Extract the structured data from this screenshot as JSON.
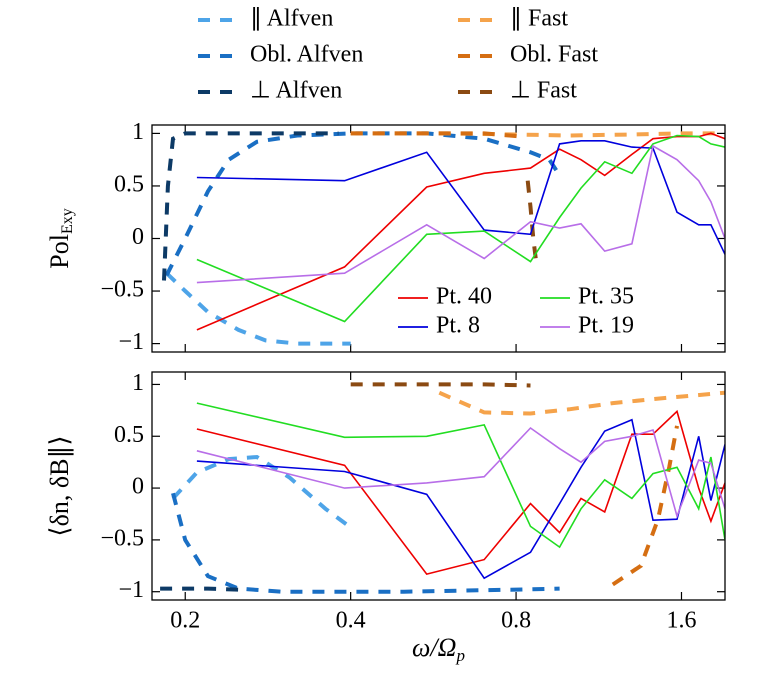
{
  "chart_data": [
    {
      "type": "line",
      "xscale": "log",
      "ylabel": "Pol",
      "ylabel_subscript": "Exy",
      "xlim": [
        0.174,
        1.92
      ],
      "ylim": [
        -1.08,
        1.08
      ],
      "xticks": [
        0.2,
        0.4,
        0.8,
        1.6
      ],
      "yticks": [
        {
          "value": -1,
          "label": "−1"
        },
        {
          "value": -0.5,
          "label": "−0.5"
        },
        0,
        0.5,
        1
      ],
      "legend": "lower right",
      "x": [
        0.21,
        0.39,
        0.55,
        0.7,
        0.85,
        0.96,
        1.05,
        1.16,
        1.3,
        1.42,
        1.57,
        1.72,
        1.81,
        1.92
      ],
      "series": [
        {
          "name": "∥ Alfven",
          "color": "#4ea4e8",
          "style": "dashed",
          "x": [
            0.185,
            0.2,
            0.22,
            0.25,
            0.28,
            0.32,
            0.4
          ],
          "values": [
            -0.33,
            -0.5,
            -0.7,
            -0.87,
            -0.97,
            -1,
            -1
          ]
        },
        {
          "name": "Obl. Alfven",
          "color": "#1a6fc4",
          "style": "dashed",
          "x": [
            0.185,
            0.2,
            0.22,
            0.24,
            0.27,
            0.32,
            0.4,
            0.55,
            0.7,
            0.85,
            0.92,
            0.96
          ],
          "values": [
            -0.35,
            0.0,
            0.45,
            0.75,
            0.92,
            0.98,
            1,
            1,
            0.95,
            0.82,
            0.75,
            0.6
          ]
        },
        {
          "name": "⊥ Alfven",
          "color": "#0d3a66",
          "style": "dashed",
          "x": [
            0.183,
            0.186,
            0.19,
            0.2,
            0.25,
            0.3,
            0.38
          ],
          "values": [
            -0.4,
            0.5,
            0.95,
            1,
            1,
            1,
            1
          ]
        },
        {
          "name": "∥ Fast",
          "color": "#f5a34b",
          "style": "dashed",
          "x": [
            0.4,
            0.6,
            0.8,
            1.0,
            1.3,
            1.6,
            1.92
          ],
          "values": [
            1,
            1,
            0.99,
            0.98,
            0.99,
            1,
            1
          ]
        },
        {
          "name": "Obl. Fast",
          "color": "#d56e12",
          "style": "dashed",
          "x": [
            0.4,
            0.55,
            0.7,
            0.82
          ],
          "values": [
            1,
            1,
            1,
            0.97
          ]
        },
        {
          "name": "⊥ Fast",
          "color": "#8b4a12",
          "style": "dashed",
          "x": [
            0.84,
            0.85,
            0.86,
            0.87
          ],
          "values": [
            0.55,
            0.3,
            0.0,
            -0.22
          ]
        },
        {
          "name": "Pt. 40",
          "color": "#ee0000",
          "style": "solid",
          "values": [
            -0.87,
            -0.27,
            0.49,
            0.62,
            0.67,
            0.85,
            0.75,
            0.6,
            0.8,
            0.95,
            0.97,
            0.97,
            1.0,
            0.95
          ]
        },
        {
          "name": "Pt. 8",
          "color": "#0000dd",
          "style": "solid",
          "values": [
            0.58,
            0.55,
            0.82,
            0.08,
            0.04,
            0.9,
            0.93,
            0.93,
            0.87,
            0.86,
            0.25,
            0.13,
            0.13,
            -0.15
          ]
        },
        {
          "name": "Pt. 35",
          "color": "#22dd22",
          "style": "solid",
          "values": [
            -0.2,
            -0.79,
            0.04,
            0.07,
            -0.22,
            0.2,
            0.48,
            0.73,
            0.62,
            0.9,
            0.98,
            0.97,
            0.9,
            0.87
          ]
        },
        {
          "name": "Pt. 19",
          "color": "#b86ee8",
          "style": "solid",
          "values": [
            -0.42,
            -0.33,
            0.13,
            -0.19,
            0.16,
            0.1,
            0.14,
            -0.12,
            -0.05,
            0.88,
            0.75,
            0.55,
            0.35,
            0.0
          ]
        }
      ]
    },
    {
      "type": "line",
      "xscale": "log",
      "ylabel": "⟨δn, δB∥⟩",
      "xlabel": "ω/Ω",
      "xlabel_subscript": "p",
      "xlim": [
        0.174,
        1.92
      ],
      "ylim": [
        -1.08,
        1.12
      ],
      "xticks": [
        0.2,
        0.4,
        0.8,
        1.6
      ],
      "yticks": [
        {
          "value": -1,
          "label": "−1"
        },
        {
          "value": -0.5,
          "label": "−0.5"
        },
        0,
        0.5,
        1
      ],
      "x": [
        0.21,
        0.39,
        0.55,
        0.7,
        0.85,
        0.96,
        1.05,
        1.16,
        1.3,
        1.42,
        1.57,
        1.72,
        1.81,
        1.92
      ],
      "series": [
        {
          "color": "#4ea4e8",
          "style": "dashed",
          "x": [
            0.19,
            0.21,
            0.24,
            0.27,
            0.31,
            0.36,
            0.4
          ],
          "values": [
            -0.1,
            0.15,
            0.28,
            0.3,
            0.1,
            -0.2,
            -0.38
          ]
        },
        {
          "color": "#1a6fc4",
          "style": "dashed",
          "x": [
            0.19,
            0.2,
            0.22,
            0.25,
            0.3,
            0.5,
            0.8,
            0.96
          ],
          "values": [
            -0.05,
            -0.5,
            -0.85,
            -0.97,
            -1,
            -1,
            -0.98,
            -0.97
          ]
        },
        {
          "color": "#0d3a66",
          "style": "dashed",
          "x": [
            0.18,
            0.22,
            0.25
          ],
          "values": [
            -0.97,
            -0.97,
            -0.98
          ]
        },
        {
          "color": "#f5a34b",
          "style": "dashed",
          "x": [
            0.58,
            0.7,
            0.85,
            1.0,
            1.2,
            1.5,
            1.92
          ],
          "values": [
            0.92,
            0.73,
            0.72,
            0.76,
            0.82,
            0.87,
            0.92
          ]
        },
        {
          "color": "#d56e12",
          "style": "dashed",
          "x": [
            1.2,
            1.35,
            1.45,
            1.52,
            1.57
          ],
          "values": [
            -0.93,
            -0.75,
            -0.3,
            0.2,
            0.6
          ]
        },
        {
          "color": "#8b4a12",
          "style": "dashed",
          "x": [
            0.4,
            0.55,
            0.7,
            0.85
          ],
          "values": [
            1,
            1,
            1,
            0.99
          ]
        },
        {
          "color": "#ee0000",
          "style": "solid",
          "values": [
            0.57,
            0.22,
            -0.83,
            -0.69,
            -0.15,
            -0.43,
            -0.1,
            -0.23,
            0.52,
            0.52,
            0.74,
            0.0,
            -0.32,
            0.05
          ]
        },
        {
          "color": "#0000dd",
          "style": "solid",
          "values": [
            0.26,
            0.16,
            -0.06,
            -0.87,
            -0.62,
            -0.15,
            0.2,
            0.55,
            0.66,
            -0.31,
            -0.3,
            0.5,
            -0.12,
            0.42
          ]
        },
        {
          "color": "#22dd22",
          "style": "solid",
          "values": [
            0.82,
            0.49,
            0.5,
            0.61,
            -0.37,
            -0.57,
            -0.2,
            0.08,
            -0.1,
            0.14,
            0.2,
            -0.2,
            0.3,
            -0.5
          ]
        },
        {
          "color": "#b86ee8",
          "style": "solid",
          "values": [
            0.36,
            0.0,
            0.05,
            0.11,
            0.58,
            0.38,
            0.25,
            0.45,
            0.5,
            0.56,
            -0.27,
            0.27,
            0.24,
            -0.2
          ]
        }
      ]
    }
  ]
}
